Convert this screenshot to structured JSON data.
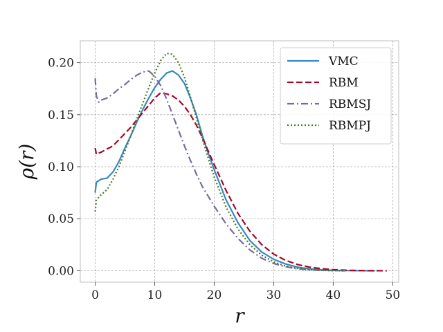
{
  "chart_data": {
    "type": "line",
    "title": "",
    "xlabel": "r",
    "ylabel": "ρ(r)",
    "xlim": [
      -2.5,
      51
    ],
    "ylim": [
      -0.011,
      0.221
    ],
    "xticks": [
      0,
      10,
      20,
      30,
      40,
      50
    ],
    "xtick_labels": [
      "0",
      "10",
      "20",
      "30",
      "40",
      "50"
    ],
    "yticks": [
      0.0,
      0.05,
      0.1,
      0.15,
      0.2
    ],
    "ytick_labels": [
      "0.00",
      "0.05",
      "0.10",
      "0.15",
      "0.20"
    ],
    "grid": true,
    "legend_position": "top-right",
    "series": [
      {
        "name": "VMC",
        "color": "#348abd",
        "style": "solid",
        "points": [
          [
            0,
            0.075
          ],
          [
            0.2,
            0.085
          ],
          [
            1,
            0.088
          ],
          [
            2,
            0.089
          ],
          [
            3,
            0.095
          ],
          [
            4,
            0.105
          ],
          [
            5,
            0.118
          ],
          [
            6,
            0.13
          ],
          [
            7,
            0.143
          ],
          [
            8,
            0.155
          ],
          [
            9,
            0.166
          ],
          [
            10,
            0.176
          ],
          [
            11,
            0.184
          ],
          [
            12,
            0.19
          ],
          [
            13,
            0.192
          ],
          [
            14,
            0.188
          ],
          [
            15,
            0.18
          ],
          [
            16,
            0.166
          ],
          [
            17,
            0.15
          ],
          [
            18,
            0.13
          ],
          [
            19,
            0.113
          ],
          [
            20,
            0.097
          ],
          [
            22,
            0.068
          ],
          [
            24,
            0.046
          ],
          [
            26,
            0.029
          ],
          [
            28,
            0.018
          ],
          [
            30,
            0.011
          ],
          [
            32,
            0.0065
          ],
          [
            34,
            0.0035
          ],
          [
            36,
            0.0018
          ],
          [
            38,
            0.0009
          ],
          [
            40,
            0.0004
          ],
          [
            43,
            0.0001
          ],
          [
            47,
            0.0
          ]
        ]
      },
      {
        "name": "RBM",
        "color": "#a60628",
        "style": "dashed",
        "points": [
          [
            0,
            0.118
          ],
          [
            0.2,
            0.112
          ],
          [
            1,
            0.114
          ],
          [
            2,
            0.117
          ],
          [
            3,
            0.12
          ],
          [
            4,
            0.126
          ],
          [
            5,
            0.132
          ],
          [
            6,
            0.138
          ],
          [
            7,
            0.145
          ],
          [
            8,
            0.152
          ],
          [
            9,
            0.159
          ],
          [
            10,
            0.166
          ],
          [
            11,
            0.171
          ],
          [
            12,
            0.17
          ],
          [
            13,
            0.168
          ],
          [
            14,
            0.164
          ],
          [
            15,
            0.158
          ],
          [
            16,
            0.15
          ],
          [
            17,
            0.14
          ],
          [
            18,
            0.128
          ],
          [
            19,
            0.115
          ],
          [
            20,
            0.102
          ],
          [
            22,
            0.077
          ],
          [
            24,
            0.055
          ],
          [
            26,
            0.038
          ],
          [
            28,
            0.025
          ],
          [
            30,
            0.016
          ],
          [
            32,
            0.01
          ],
          [
            34,
            0.006
          ],
          [
            36,
            0.0035
          ],
          [
            38,
            0.002
          ],
          [
            40,
            0.001
          ],
          [
            43,
            0.0004
          ],
          [
            46,
            0.0001
          ],
          [
            49,
            0.0
          ]
        ]
      },
      {
        "name": "RBMSJ",
        "color": "#7a68a6",
        "style": "dashdot",
        "points": [
          [
            0,
            0.185
          ],
          [
            0.2,
            0.168
          ],
          [
            0.6,
            0.162
          ],
          [
            1,
            0.164
          ],
          [
            2,
            0.166
          ],
          [
            3,
            0.17
          ],
          [
            4,
            0.175
          ],
          [
            5,
            0.179
          ],
          [
            6,
            0.184
          ],
          [
            7,
            0.188
          ],
          [
            8,
            0.191
          ],
          [
            9,
            0.192
          ],
          [
            10,
            0.187
          ],
          [
            11,
            0.178
          ],
          [
            12,
            0.165
          ],
          [
            13,
            0.15
          ],
          [
            14,
            0.135
          ],
          [
            15,
            0.12
          ],
          [
            16,
            0.106
          ],
          [
            17,
            0.093
          ],
          [
            18,
            0.081
          ],
          [
            20,
            0.062
          ],
          [
            22,
            0.045
          ],
          [
            24,
            0.031
          ],
          [
            26,
            0.02
          ],
          [
            28,
            0.012
          ],
          [
            30,
            0.007
          ],
          [
            32,
            0.0038
          ],
          [
            34,
            0.0019
          ],
          [
            36,
            0.0009
          ],
          [
            38,
            0.0004
          ],
          [
            40,
            0.0002
          ],
          [
            42,
            0.0
          ]
        ]
      },
      {
        "name": "RBMPJ",
        "color": "#467821",
        "style": "dotted",
        "points": [
          [
            0,
            0.057
          ],
          [
            0.2,
            0.068
          ],
          [
            1,
            0.073
          ],
          [
            2,
            0.078
          ],
          [
            3,
            0.088
          ],
          [
            4,
            0.1
          ],
          [
            5,
            0.115
          ],
          [
            6,
            0.13
          ],
          [
            7,
            0.146
          ],
          [
            8,
            0.161
          ],
          [
            9,
            0.176
          ],
          [
            10,
            0.19
          ],
          [
            11,
            0.202
          ],
          [
            12,
            0.209
          ],
          [
            13,
            0.208
          ],
          [
            14,
            0.2
          ],
          [
            15,
            0.186
          ],
          [
            16,
            0.167
          ],
          [
            17,
            0.147
          ],
          [
            18,
            0.127
          ],
          [
            19,
            0.108
          ],
          [
            20,
            0.09
          ],
          [
            22,
            0.061
          ],
          [
            24,
            0.04
          ],
          [
            26,
            0.025
          ],
          [
            28,
            0.015
          ],
          [
            30,
            0.0085
          ],
          [
            32,
            0.0045
          ],
          [
            34,
            0.0022
          ],
          [
            36,
            0.001
          ],
          [
            38,
            0.0004
          ],
          [
            40,
            0.0001
          ],
          [
            42,
            0.0
          ]
        ]
      }
    ]
  }
}
